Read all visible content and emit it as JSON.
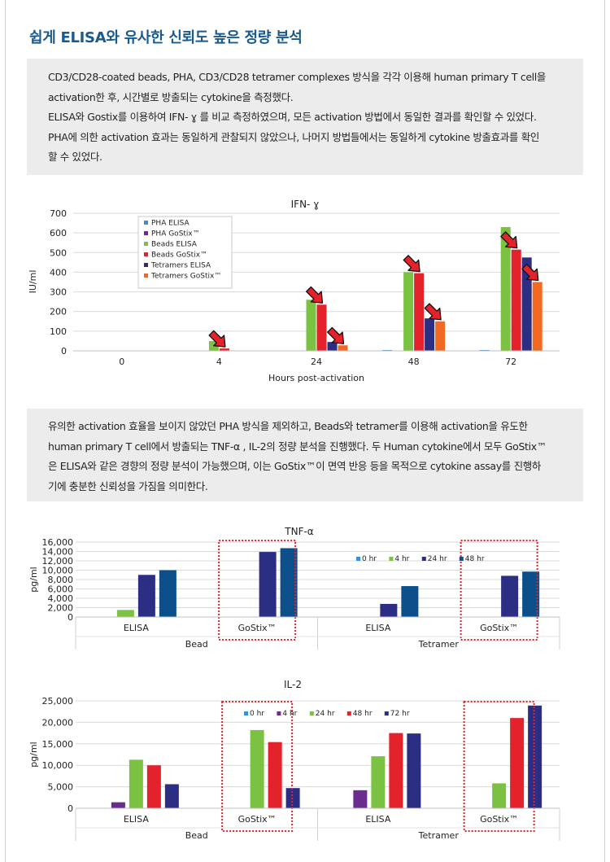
{
  "header": {
    "title": "쉽게 ELISA와 유사한 신뢰도 높은 정량 분석"
  },
  "intro": {
    "lines": [
      "CD3/CD28-coated beads, PHA, CD3/CD28 tetramer complexes 방식을 각각 이용해 human primary T cell을",
      "activation한 후, 시간별로 방출되는 cytokine을 측정했다.",
      "ELISA와 Gostix를 이용하여 IFN- ɣ 를 비교 측정하였으며, 모든 activation 방법에서 동일한 결과를 확인할 수 있었다.",
      "PHA에 의한 activation 효과는 동일하게 관찰되지 않았으나, 나머지 방법들에서는 동일하게 cytokine 방출효과를 확인",
      "할 수 있었다."
    ]
  },
  "summary": {
    "lines": [
      "유의한 activation 효율을 보이지 않았던 PHA 방식을 제외하고, Beads와 tetramer를 이용해 activation을 유도한",
      "human primary T cell에서 방출되는 TNF-α , IL-2의 정량 분석을 진행했다. 두 Human cytokine에서 모두 GoStix™",
      "은 ELISA와 같은 경향의 정량 분석이 가능했으며, 이는 GoStix™이 면역 반응 등을 목적으로 cytokine assay를 진행하",
      "기에 충분한 신뢰성을 가짐을 의미한다."
    ]
  },
  "chart_data": [
    {
      "type": "bar",
      "title": "IFN- ɣ",
      "xlabel": "Hours post-activation",
      "ylabel": "IU/ml",
      "ylim": [
        0,
        700
      ],
      "yticks": [
        "0",
        "100",
        "200",
        "300",
        "400",
        "500",
        "600",
        "700"
      ],
      "categories": [
        "0",
        "4",
        "24",
        "48",
        "72"
      ],
      "legend_position": "top-left",
      "series": [
        {
          "name": "PHA ELISA",
          "color": "#3a8fd6",
          "values": [
            0,
            0,
            0,
            4,
            4
          ]
        },
        {
          "name": "PHA GoStix™",
          "color": "#6a2d8f",
          "values": [
            0,
            0,
            0,
            0,
            0
          ]
        },
        {
          "name": "Beads ELISA",
          "color": "#7cc242",
          "values": [
            0,
            50,
            260,
            400,
            630
          ]
        },
        {
          "name": "Beads GoStix™",
          "color": "#e3222b",
          "values": [
            0,
            12,
            235,
            395,
            515
          ]
        },
        {
          "name": "Tetramers ELISA",
          "color": "#2b2e83",
          "values": [
            0,
            0,
            45,
            165,
            475
          ]
        },
        {
          "name": "Tetramers GoStix™",
          "color": "#f26a21",
          "values": [
            0,
            0,
            28,
            150,
            350
          ]
        }
      ],
      "arrow_marks": [
        {
          "category": "4",
          "series": "Beads GoStix™"
        },
        {
          "category": "24",
          "series": "Beads GoStix™"
        },
        {
          "category": "24",
          "series": "Tetramers GoStix™"
        },
        {
          "category": "48",
          "series": "Beads GoStix™"
        },
        {
          "category": "48",
          "series": "Tetramers GoStix™"
        },
        {
          "category": "72",
          "series": "Beads GoStix™"
        },
        {
          "category": "72",
          "series": "Tetramers GoStix™"
        }
      ]
    },
    {
      "type": "bar",
      "title": "TNF-α",
      "ylabel": "pg/ml",
      "ylim": [
        0,
        16000
      ],
      "yticks": [
        "0",
        "2,000",
        "4,000",
        "6,000",
        "8,000",
        "10,000",
        "12,000",
        "14,000",
        "16,000"
      ],
      "groups": [
        "Bead",
        "Tetramer"
      ],
      "categories": [
        "ELISA",
        "GoStix™",
        "ELISA",
        "GoStix™"
      ],
      "legend_position": "top-right",
      "series": [
        {
          "name": "0 hr",
          "color": "#3a8fd6",
          "values": [
            0,
            0,
            0,
            0
          ]
        },
        {
          "name": "4 hr",
          "color": "#7cc242",
          "values": [
            1500,
            0,
            0,
            0
          ]
        },
        {
          "name": "24 hr",
          "color": "#2b2e83",
          "values": [
            9000,
            13900,
            2800,
            8800
          ]
        },
        {
          "name": "48 hr",
          "color": "#0d4f8b",
          "values": [
            10000,
            14700,
            6600,
            9700
          ]
        }
      ],
      "highlighted": [
        "GoStix™"
      ]
    },
    {
      "type": "bar",
      "title": "IL-2",
      "ylabel": "pg/ml",
      "ylim": [
        0,
        25000
      ],
      "yticks": [
        "0",
        "5,000",
        "10,000",
        "15,000",
        "20,000",
        "25,000"
      ],
      "groups": [
        "Bead",
        "Tetramer"
      ],
      "categories": [
        "ELISA",
        "GoStix™",
        "ELISA",
        "GoStix™"
      ],
      "legend_position": "top-center",
      "series": [
        {
          "name": "0 hr",
          "color": "#3a8fd6",
          "values": [
            0,
            0,
            0,
            0
          ]
        },
        {
          "name": "4 hr",
          "color": "#6a2d8f",
          "values": [
            1400,
            0,
            4200,
            0
          ]
        },
        {
          "name": "24 hr",
          "color": "#7cc242",
          "values": [
            11300,
            18200,
            12100,
            5800
          ]
        },
        {
          "name": "48 hr",
          "color": "#e3222b",
          "values": [
            10000,
            15400,
            17500,
            21000
          ]
        },
        {
          "name": "72 hr",
          "color": "#2b2e83",
          "values": [
            5600,
            4700,
            17400,
            23900
          ]
        }
      ],
      "highlighted": [
        "GoStix™"
      ]
    }
  ]
}
